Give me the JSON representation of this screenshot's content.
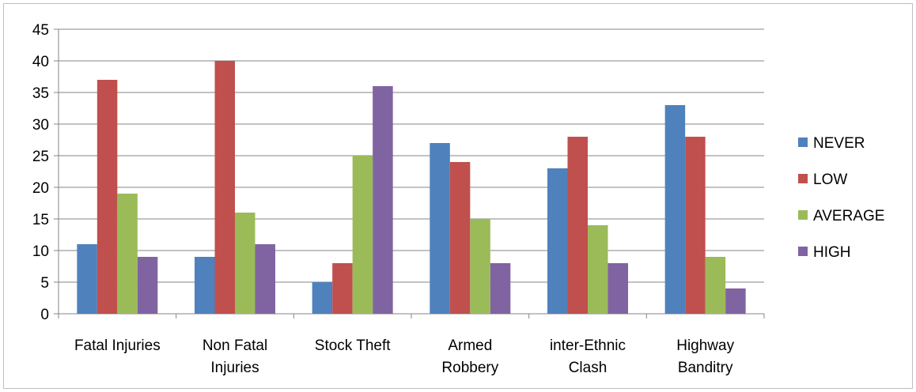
{
  "chart_data": {
    "type": "bar",
    "title": "",
    "xlabel": "",
    "ylabel": "",
    "ylim": [
      0,
      45
    ],
    "yticks": [
      0,
      5,
      10,
      15,
      20,
      25,
      30,
      35,
      40,
      45
    ],
    "grid": true,
    "legend_position": "right",
    "categories": [
      [
        "Fatal Injuries"
      ],
      [
        "Non Fatal",
        "Injuries"
      ],
      [
        "Stock Theft"
      ],
      [
        "Armed",
        "Robbery"
      ],
      [
        "inter-Ethnic",
        "Clash"
      ],
      [
        "Highway",
        "Banditry"
      ]
    ],
    "series": [
      {
        "name": "NEVER",
        "color": "#4f81bd",
        "values": [
          11,
          9,
          5,
          27,
          23,
          33
        ]
      },
      {
        "name": "LOW",
        "color": "#c0504d",
        "values": [
          37,
          40,
          8,
          24,
          28,
          28
        ]
      },
      {
        "name": "AVERAGE",
        "color": "#9bbb59",
        "values": [
          19,
          16,
          25,
          15,
          14,
          9
        ]
      },
      {
        "name": "HIGH",
        "color": "#8064a2",
        "values": [
          9,
          11,
          36,
          8,
          8,
          4
        ]
      }
    ]
  }
}
